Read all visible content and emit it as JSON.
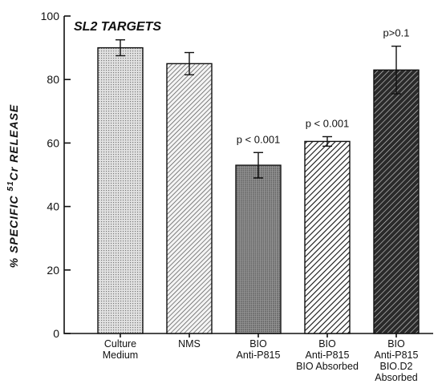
{
  "chart_data": {
    "type": "bar",
    "title": "SL2 TARGETS",
    "ylabel_prefix": "% SPECIFIC ",
    "ylabel_sup": "51",
    "ylabel_suffix": "Cr RELEASE",
    "xlabel": "",
    "ylim": [
      0,
      100
    ],
    "yticks": [
      "0",
      "20",
      "40",
      "60",
      "80",
      "100"
    ],
    "grid": false,
    "categories": [
      [
        "Culture",
        "Medium"
      ],
      [
        "NMS"
      ],
      [
        "BIO",
        "Anti-P815"
      ],
      [
        "BIO",
        "Anti-P815",
        "BIO Absorbed"
      ],
      [
        "BIO",
        "Anti-P815",
        "BIO.D2",
        "Absorbed"
      ]
    ],
    "values": [
      90,
      85,
      53,
      60.5,
      83
    ],
    "errors": [
      2.5,
      3.5,
      4,
      1.5,
      7.5
    ],
    "annotations": [
      "",
      "",
      "p < 0.001",
      "p < 0.001",
      "p>0.1"
    ],
    "fills": [
      "dots-light",
      "hatch-fine",
      "dots-dense",
      "hatch-medium",
      "hatch-dark"
    ]
  }
}
